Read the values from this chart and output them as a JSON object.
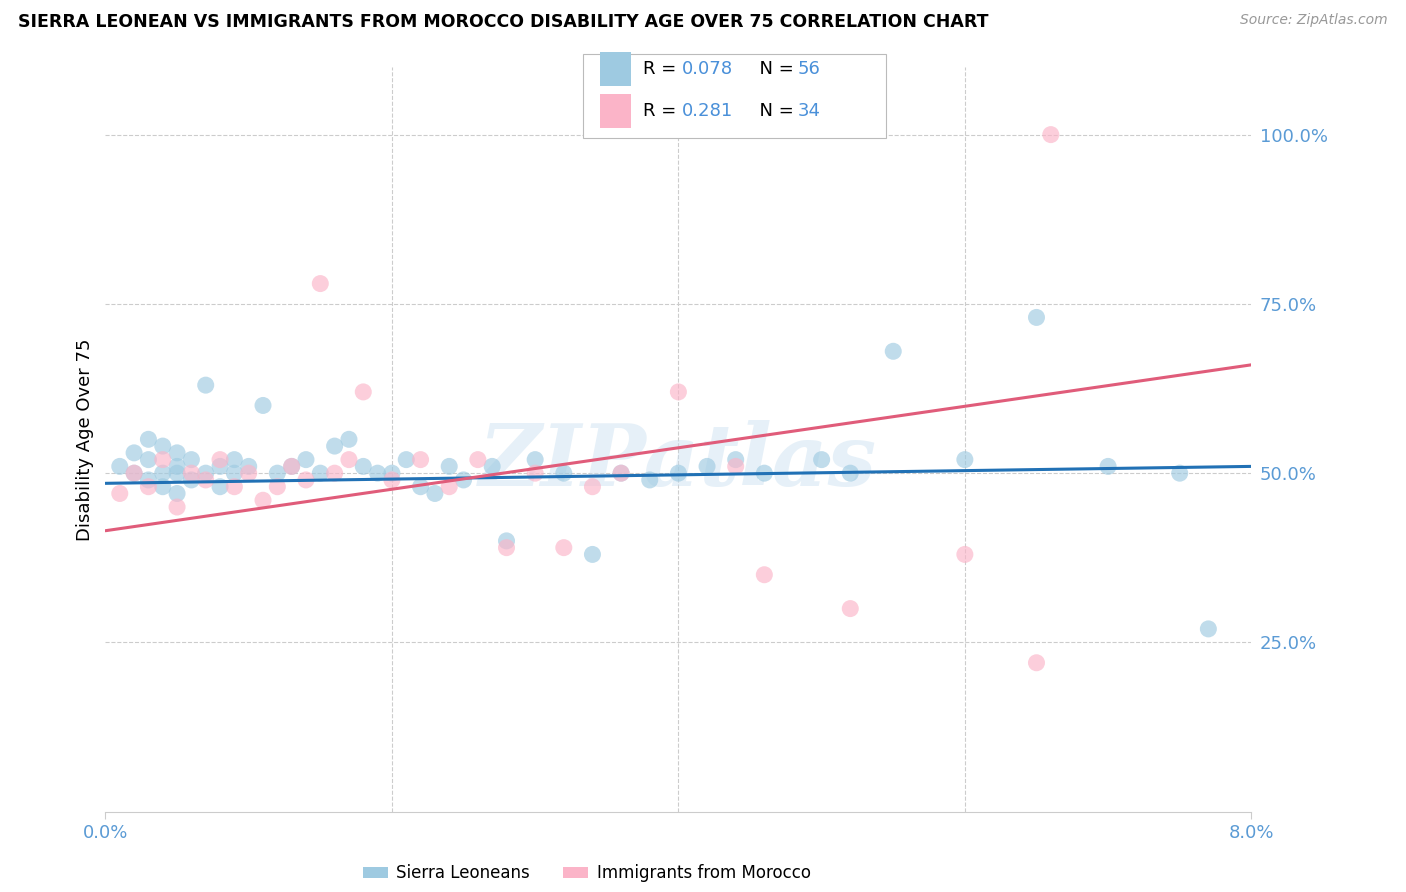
{
  "title": "SIERRA LEONEAN VS IMMIGRANTS FROM MOROCCO DISABILITY AGE OVER 75 CORRELATION CHART",
  "source": "Source: ZipAtlas.com",
  "ylabel": "Disability Age Over 75",
  "xmin": 0.0,
  "xmax": 0.08,
  "ymin": 0.0,
  "ymax": 1.1,
  "color_blue": "#9ecae1",
  "color_pink": "#fbb4c8",
  "line_blue": "#2171b5",
  "line_pink": "#e05c7a",
  "r_blue": "0.078",
  "n_blue": "56",
  "r_pink": "0.281",
  "n_pink": "34",
  "text_color_val": "#4a90d9",
  "watermark": "ZIPatlas",
  "legend1_label": "Sierra Leoneans",
  "legend2_label": "Immigrants from Morocco",
  "ytick_vals": [
    0.25,
    0.5,
    0.75,
    1.0
  ],
  "ytick_labels": [
    "25.0%",
    "50.0%",
    "75.0%",
    "100.0%"
  ],
  "axis_color": "#5b9bd5",
  "grid_color": "#cccccc",
  "sl_x": [
    0.001,
    0.002,
    0.002,
    0.003,
    0.003,
    0.003,
    0.004,
    0.004,
    0.004,
    0.005,
    0.005,
    0.005,
    0.005,
    0.006,
    0.006,
    0.007,
    0.007,
    0.008,
    0.008,
    0.009,
    0.009,
    0.01,
    0.011,
    0.012,
    0.013,
    0.014,
    0.015,
    0.016,
    0.017,
    0.018,
    0.019,
    0.02,
    0.021,
    0.022,
    0.023,
    0.024,
    0.025,
    0.027,
    0.028,
    0.03,
    0.032,
    0.034,
    0.036,
    0.038,
    0.04,
    0.042,
    0.044,
    0.046,
    0.05,
    0.052,
    0.055,
    0.06,
    0.065,
    0.07,
    0.075,
    0.077
  ],
  "sl_y": [
    0.51,
    0.5,
    0.53,
    0.49,
    0.52,
    0.55,
    0.5,
    0.48,
    0.54,
    0.51,
    0.53,
    0.47,
    0.5,
    0.52,
    0.49,
    0.63,
    0.5,
    0.51,
    0.48,
    0.52,
    0.5,
    0.51,
    0.6,
    0.5,
    0.51,
    0.52,
    0.5,
    0.54,
    0.55,
    0.51,
    0.5,
    0.5,
    0.52,
    0.48,
    0.47,
    0.51,
    0.49,
    0.51,
    0.4,
    0.52,
    0.5,
    0.38,
    0.5,
    0.49,
    0.5,
    0.51,
    0.52,
    0.5,
    0.52,
    0.5,
    0.68,
    0.52,
    0.73,
    0.51,
    0.5,
    0.27
  ],
  "mo_x": [
    0.001,
    0.002,
    0.003,
    0.004,
    0.005,
    0.006,
    0.007,
    0.008,
    0.009,
    0.01,
    0.011,
    0.012,
    0.013,
    0.014,
    0.015,
    0.016,
    0.017,
    0.018,
    0.02,
    0.022,
    0.024,
    0.026,
    0.028,
    0.03,
    0.032,
    0.034,
    0.036,
    0.04,
    0.044,
    0.046,
    0.052,
    0.06,
    0.065,
    0.066
  ],
  "mo_y": [
    0.47,
    0.5,
    0.48,
    0.52,
    0.45,
    0.5,
    0.49,
    0.52,
    0.48,
    0.5,
    0.46,
    0.48,
    0.51,
    0.49,
    0.78,
    0.5,
    0.52,
    0.62,
    0.49,
    0.52,
    0.48,
    0.52,
    0.39,
    0.5,
    0.39,
    0.48,
    0.5,
    0.62,
    0.51,
    0.35,
    0.3,
    0.38,
    0.22,
    1.0
  ],
  "sl_line_x0": 0.0,
  "sl_line_y0": 0.485,
  "sl_line_x1": 0.08,
  "sl_line_y1": 0.51,
  "mo_line_x0": 0.0,
  "mo_line_y0": 0.415,
  "mo_line_x1": 0.08,
  "mo_line_y1": 0.66
}
